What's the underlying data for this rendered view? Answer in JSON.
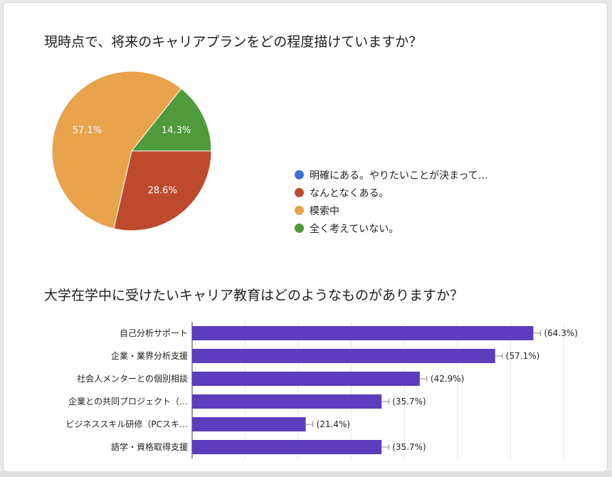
{
  "chart_data": [
    {
      "type": "pie",
      "title": "現時点で、将来のキャリアプランをどの程度描けていますか？",
      "categories": [
        "明確にある。やりたいことが決まって…",
        "なんとなくある。",
        "模索中",
        "全く考えていない。"
      ],
      "values": [
        0,
        28.6,
        57.1,
        14.3
      ],
      "labels": [
        "",
        "28.6%",
        "57.1%",
        "14.3%"
      ],
      "colors": [
        "#3e6fd4",
        "#be4a2e",
        "#e8a34c",
        "#4f9a3a"
      ],
      "legend": "right"
    },
    {
      "type": "bar",
      "orientation": "horizontal",
      "title": "大学在学中に受けたいキャリア教育はどのようなものがありますか？",
      "categories": [
        "自己分析サポート",
        "企業・業界分析支援",
        "社会人メンターとの個別相談",
        "企業との共同プロジェクト（…",
        "ビジネススキル研修（PCスキ…",
        "語学・資格取得支援"
      ],
      "values": [
        64.3,
        57.1,
        42.9,
        35.7,
        21.4,
        35.7
      ],
      "labels": [
        "(64.3%)",
        "(57.1%)",
        "(42.9%)",
        "(35.7%)",
        "(21.4%)",
        "(35.7%)"
      ],
      "xlim": [
        0,
        70
      ],
      "bar_color": "#5b3dbd",
      "grid": true
    }
  ]
}
